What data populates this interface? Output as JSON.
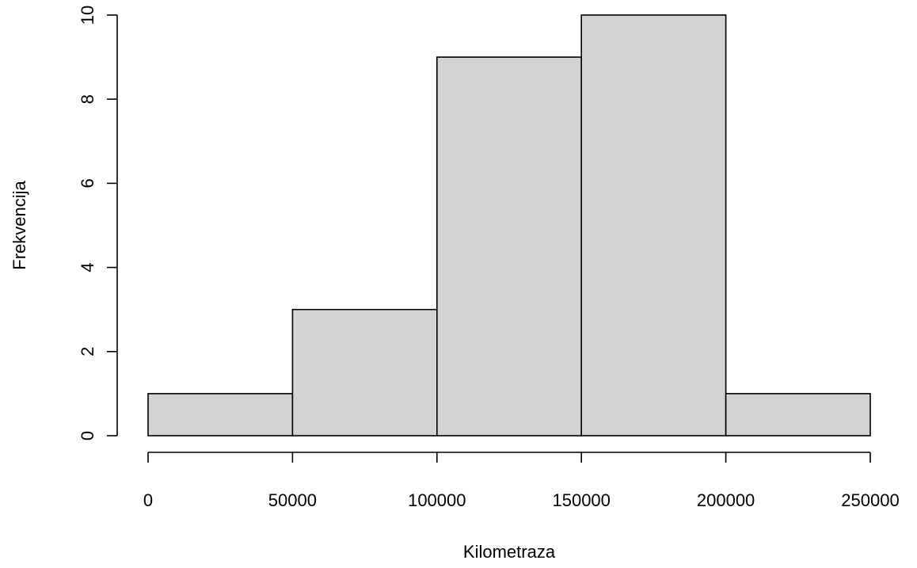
{
  "chart_data": {
    "type": "bar",
    "subtype": "histogram",
    "bins": [
      {
        "start": 0,
        "end": 50000,
        "count": 1
      },
      {
        "start": 50000,
        "end": 100000,
        "count": 3
      },
      {
        "start": 100000,
        "end": 150000,
        "count": 9
      },
      {
        "start": 150000,
        "end": 200000,
        "count": 10
      },
      {
        "start": 200000,
        "end": 250000,
        "count": 1
      }
    ],
    "xlabel": "Kilometraza",
    "ylabel": "Frekvencija",
    "xlim": [
      0,
      250000
    ],
    "ylim": [
      0,
      10
    ],
    "xticks": [
      0,
      50000,
      100000,
      150000,
      200000,
      250000
    ],
    "yticks": [
      0,
      2,
      4,
      6,
      8,
      10
    ],
    "grid": false,
    "legend": "none",
    "bar_fill": "#d3d3d3",
    "bar_stroke": "#000000"
  }
}
